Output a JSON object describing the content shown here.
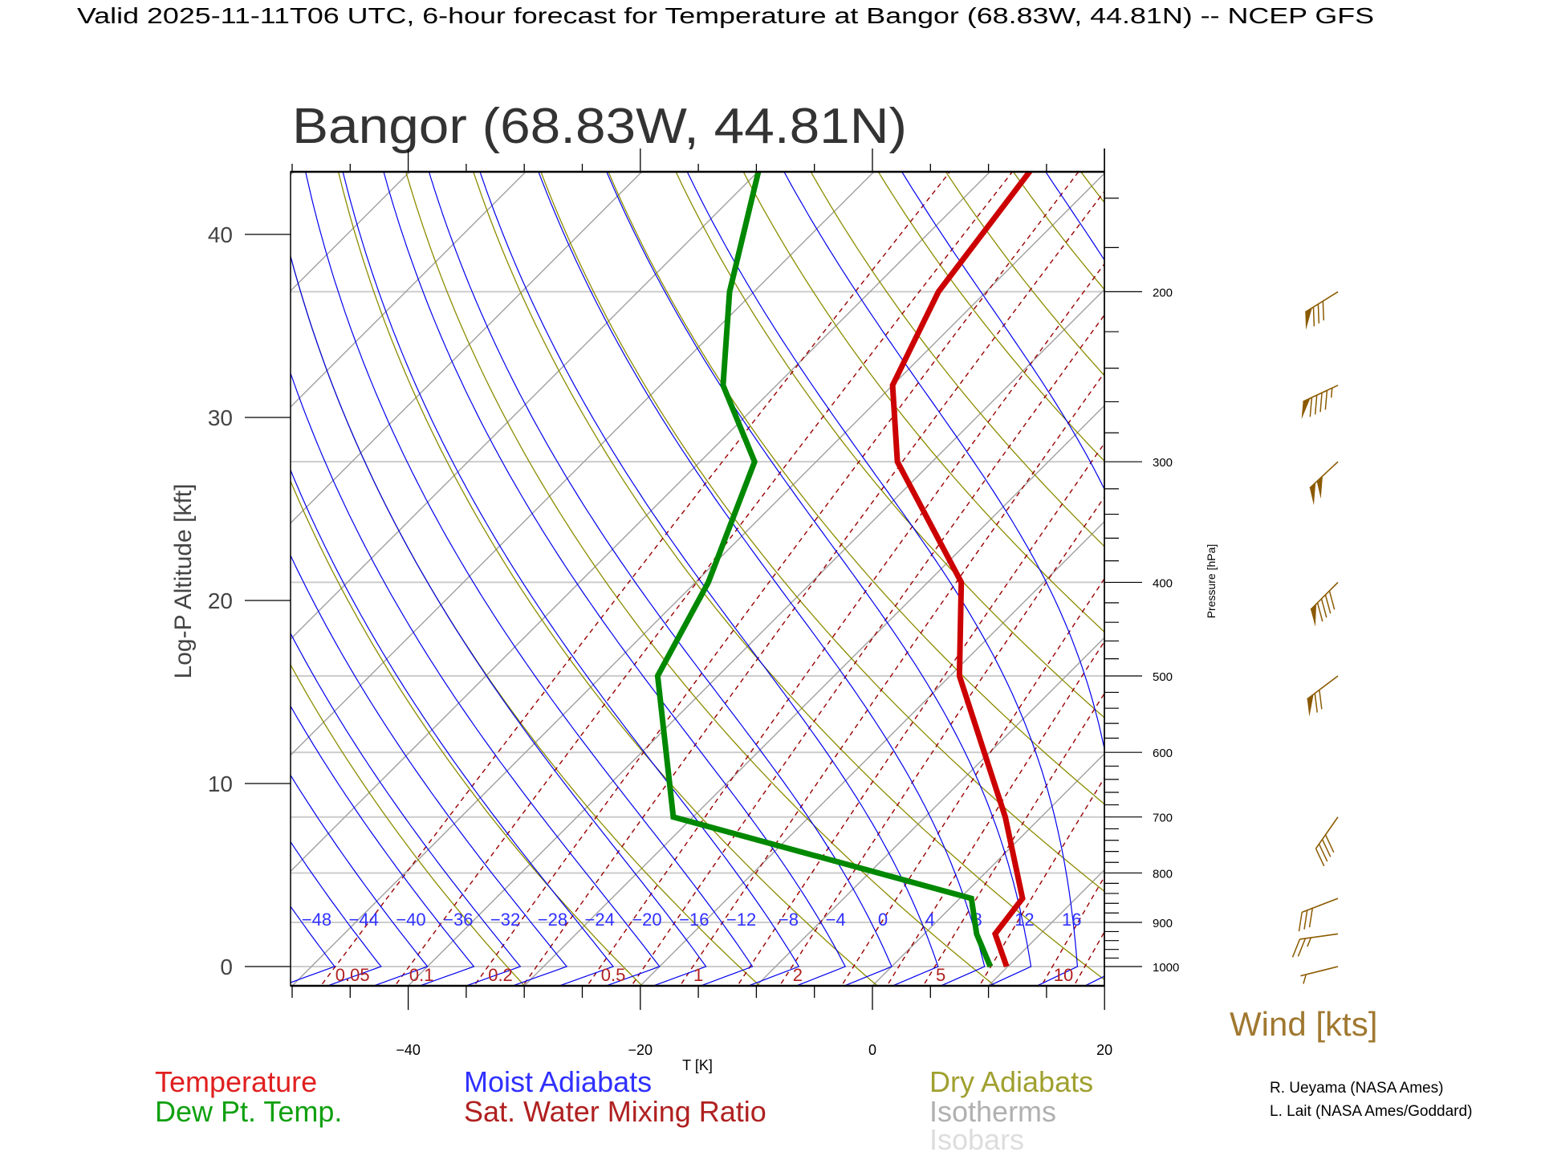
{
  "header": {
    "title": "Valid 2025-11-11T06 UTC, 6-hour forecast for Temperature at Bangor (68.83W, 44.81N) -- NCEP GFS"
  },
  "chart_data": {
    "type": "line",
    "subtype": "skew-T log-P",
    "title": "Bangor (68.83W, 44.81N)",
    "xlabel": "T [K]",
    "ylabel": "Log-P Altitude [kft]",
    "y2label": "Pressure [hPa]",
    "xlim": [
      -50,
      20
    ],
    "plim": [
      1047,
      150
    ],
    "x_ticks": [
      -40,
      -20,
      0,
      20
    ],
    "x_tick_labels": [
      "−40",
      "−20",
      "0",
      "20"
    ],
    "altitude_ticks": [
      0,
      10,
      20,
      30,
      40
    ],
    "altitude_tick_labels": [
      "0",
      "10",
      "20",
      "30",
      "40"
    ],
    "pressure_ticks": [
      200,
      300,
      400,
      500,
      600,
      700,
      800,
      900,
      1000
    ],
    "pressure_tick_labels": [
      "200",
      "300",
      "400",
      "500",
      "600",
      "700",
      "800",
      "900",
      "1000"
    ],
    "series": [
      {
        "name": "Temperature",
        "color": "#cc0000",
        "points": [
          {
            "p": 1000,
            "t": 9.9
          },
          {
            "p": 925,
            "t": 6.1
          },
          {
            "p": 850,
            "t": 5.4
          },
          {
            "p": 700,
            "t": -3.1
          },
          {
            "p": 500,
            "t": -19.2
          },
          {
            "p": 400,
            "t": -27.1
          },
          {
            "p": 300,
            "t": -43.0
          },
          {
            "p": 250,
            "t": -50.0
          },
          {
            "p": 200,
            "t": -54.1
          },
          {
            "p": 150,
            "t": -56.6
          }
        ]
      },
      {
        "name": "Dew Pt. Temp.",
        "color": "#008800",
        "points": [
          {
            "p": 1000,
            "t": 8.5
          },
          {
            "p": 925,
            "t": 4.5
          },
          {
            "p": 850,
            "t": 1.0
          },
          {
            "p": 700,
            "t": -31.7
          },
          {
            "p": 500,
            "t": -45.2
          },
          {
            "p": 400,
            "t": -48.9
          },
          {
            "p": 300,
            "t": -55.3
          },
          {
            "p": 250,
            "t": -64.6
          },
          {
            "p": 200,
            "t": -72.1
          },
          {
            "p": 150,
            "t": -80.0
          }
        ]
      }
    ],
    "moist_adiabat_labels": [
      "-48",
      "-44",
      "-40",
      "-36",
      "-32",
      "-28",
      "-24",
      "-20",
      "-16",
      "-12",
      "-8",
      "-4",
      "0",
      "4",
      "8",
      "12",
      "16"
    ],
    "mixing_ratio_labels": [
      "0.05",
      "0.1",
      "0.2",
      "0.5",
      "1",
      "2",
      "5",
      "10"
    ],
    "wind": {
      "label": "Wind [kts]",
      "color": "#8b5a00",
      "barbs": [
        {
          "p": 200,
          "dir": 238,
          "speed": 80
        },
        {
          "p": 250,
          "dir": 245,
          "speed": 95
        },
        {
          "p": 300,
          "dir": 227,
          "speed": 100
        },
        {
          "p": 400,
          "dir": 225,
          "speed": 90
        },
        {
          "p": 500,
          "dir": 233,
          "speed": 70
        },
        {
          "p": 700,
          "dir": 215,
          "speed": 40
        },
        {
          "p": 850,
          "dir": 249,
          "speed": 30
        },
        {
          "p": 925,
          "dir": 262,
          "speed": 25
        },
        {
          "p": 1000,
          "dir": 256,
          "speed": 5
        }
      ]
    },
    "colors": {
      "isotherm": "#a0a0a0",
      "isobar": "#cccccc",
      "dry_adiabat": "#8c8c00",
      "moist_adiabat": "#0000ee",
      "mixing_ratio": "#990000"
    }
  },
  "legend": {
    "temperature": "Temperature",
    "dewpoint": "Dew Pt. Temp.",
    "moist": "Moist Adiabats",
    "mixing": "Sat. Water Mixing Ratio",
    "dry": "Dry Adiabats",
    "isotherms": "Isotherms",
    "isobars": "Isobars"
  },
  "credits": [
    "R. Ueyama (NASA Ames)",
    "L. Lait (NASA Ames/Goddard)"
  ]
}
